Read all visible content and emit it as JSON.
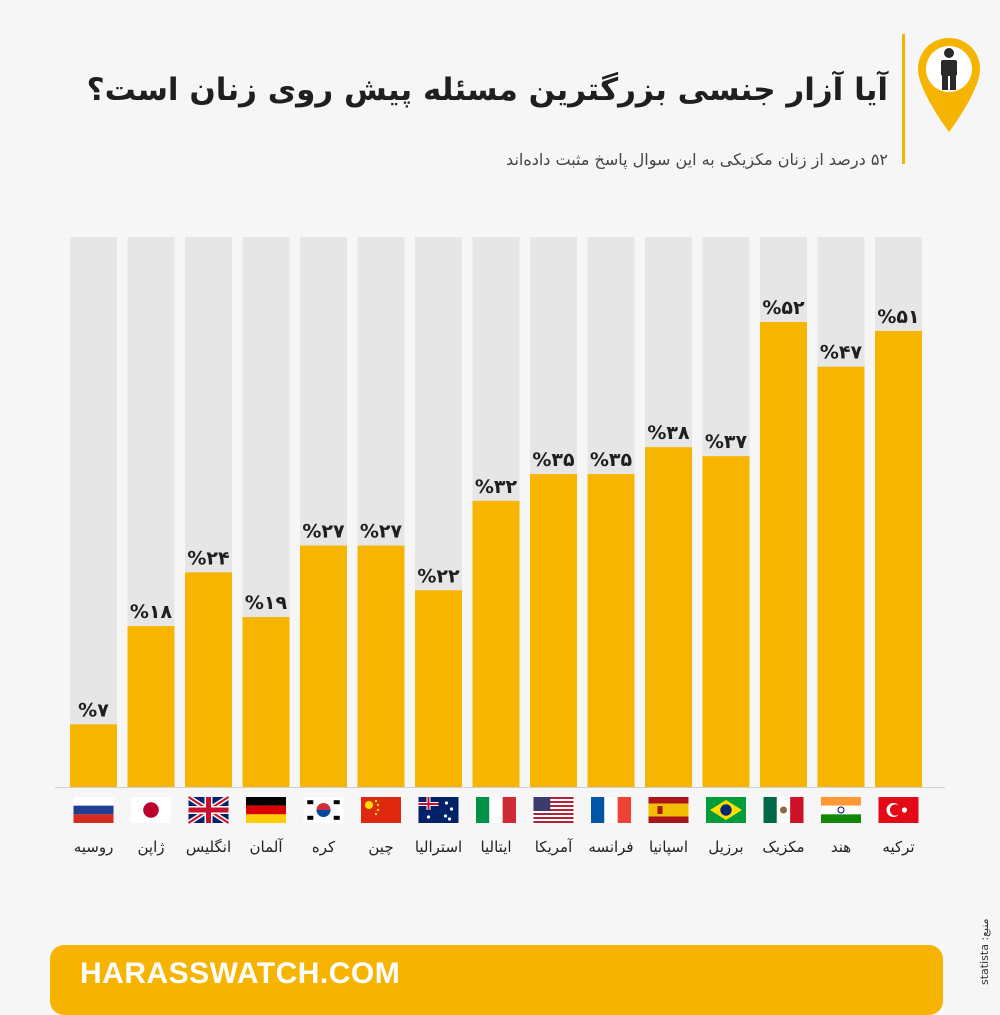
{
  "title": "آیا آزار جنسی بزرگترین مسئله پیش روی زنان است؟",
  "subtitle": "۵۲ درصد از زنان مکزیکی به این سوال پاسخ مثبت داده‌اند",
  "footer": {
    "site": "HARASSWATCH.COM"
  },
  "source": "منبع: statista",
  "colors": {
    "bar": "#f7b500",
    "track": "#e6e6e6",
    "accent": "#f5b400"
  },
  "icons": {
    "logo": "person-pin-icon"
  },
  "chart_data": {
    "type": "bar",
    "categories": [
      "روسیه",
      "ژاپن",
      "انگلیس",
      "آلمان",
      "کره",
      "چین",
      "استرالیا",
      "ایتالیا",
      "آمریکا",
      "فرانسه",
      "اسپانیا",
      "برزیل",
      "مکزیک",
      "هند",
      "ترکیه"
    ],
    "values": [
      7,
      18,
      24,
      19,
      27,
      27,
      22,
      32,
      35,
      35,
      38,
      37,
      52,
      47,
      51
    ],
    "value_labels": [
      "%۷",
      "%۱۸",
      "%۲۴",
      "%۱۹",
      "%۲۷",
      "%۲۷",
      "%۲۲",
      "%۳۲",
      "%۳۵",
      "%۳۵",
      "%۳۸",
      "%۳۷",
      "%۵۲",
      "%۴۷",
      "%۵۱"
    ],
    "flags": [
      "russia",
      "japan",
      "uk",
      "germany",
      "korea",
      "china",
      "australia",
      "italy",
      "usa",
      "france",
      "spain",
      "brazil",
      "mexico",
      "india",
      "turkey"
    ],
    "ylim": [
      0,
      60
    ],
    "grid": false
  }
}
